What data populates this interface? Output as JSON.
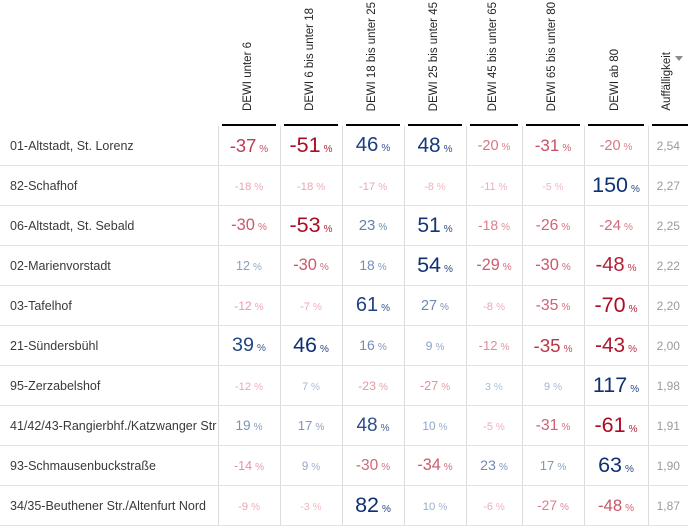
{
  "table": {
    "value_suffix": "%",
    "columns": [
      "DEWI unter 6",
      "DEWI 6 bis unter 18",
      "DEWI 18 bis unter 25",
      "DEWI 25 bis unter 45",
      "DEWI 45 bis unter 65",
      "DEWI 65 bis unter 80",
      "DEWI ab 80",
      "Auffälligkeit"
    ],
    "sort": {
      "column": "Auffälligkeit",
      "direction": "descending"
    },
    "rows": [
      {
        "label": "01-Altstadt, St. Lorenz",
        "values": [
          -37,
          -51,
          46,
          48,
          -20,
          -31,
          -20
        ],
        "score": "2,54"
      },
      {
        "label": "82-Schafhof",
        "values": [
          -18,
          -18,
          -17,
          -8,
          -11,
          -5,
          150
        ],
        "score": "2,27"
      },
      {
        "label": "06-Altstadt, St. Sebald",
        "values": [
          -30,
          -53,
          23,
          51,
          -18,
          -26,
          -24
        ],
        "score": "2,25"
      },
      {
        "label": "02-Marienvorstadt",
        "values": [
          12,
          -30,
          18,
          54,
          -29,
          -30,
          -48
        ],
        "score": "2,22"
      },
      {
        "label": "03-Tafelhof",
        "values": [
          -12,
          -7,
          61,
          27,
          -8,
          -35,
          -70
        ],
        "score": "2,20"
      },
      {
        "label": "21-Sündersbühl",
        "values": [
          39,
          46,
          16,
          9,
          -12,
          -35,
          -43
        ],
        "score": "2,00"
      },
      {
        "label": "95-Zerzabelshof",
        "values": [
          -12,
          7,
          -23,
          -27,
          3,
          9,
          117
        ],
        "score": "1,98"
      },
      {
        "label": "41/42/43-Rangierbhf./Katzwanger Str",
        "values": [
          19,
          17,
          48,
          10,
          -5,
          -31,
          -61
        ],
        "score": "1,91"
      },
      {
        "label": "93-Schmausenbuckstraße",
        "values": [
          -14,
          9,
          -30,
          -34,
          23,
          17,
          63
        ],
        "score": "1,90"
      },
      {
        "label": "34/35-Beuthener Str./Altenfurt Nord",
        "values": [
          -9,
          -3,
          82,
          10,
          -6,
          -27,
          -48
        ],
        "score": "1,87"
      }
    ]
  },
  "colors": {
    "negative_light": "#f5b8c4",
    "negative_dark": "#ab0c23",
    "positive_light": "#a9bdd9",
    "positive_dark": "#0e3174",
    "score_text": "#9b9b9b",
    "label_text": "#3a3a3a",
    "header_text": "#252423",
    "header_line": "#000000",
    "grid_line": "#e2e2e2",
    "sort_icon": "#8a8a8a"
  }
}
